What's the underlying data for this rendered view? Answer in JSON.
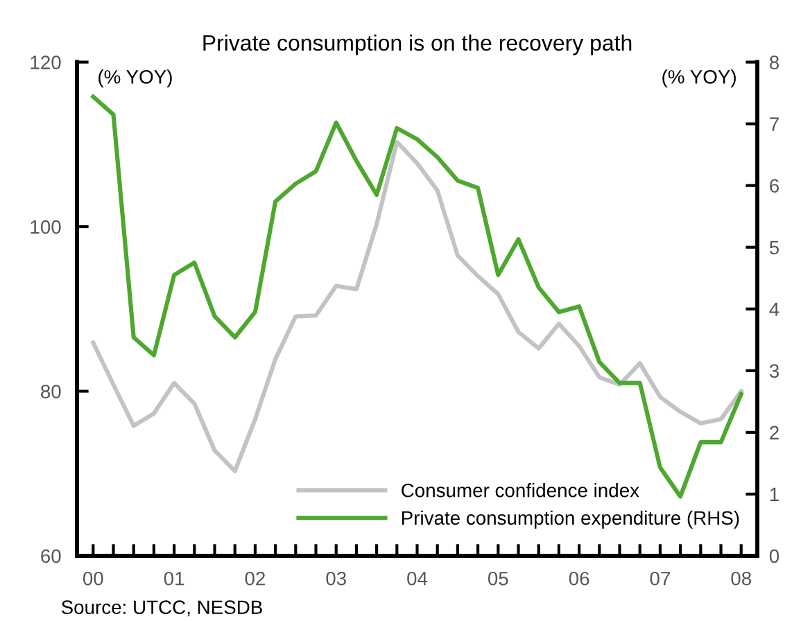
{
  "chart_data": {
    "type": "line",
    "title": "Private consumption is on the recovery path",
    "ylabel": "(% YOY)",
    "y2label": "(% YOY)",
    "x": [
      0,
      0.25,
      0.5,
      0.75,
      1,
      1.25,
      1.5,
      1.75,
      2,
      2.25,
      2.5,
      2.75,
      3,
      3.25,
      3.5,
      3.75,
      4,
      4.25,
      4.5,
      4.75,
      5,
      5.25,
      5.5,
      5.75,
      6,
      6.25,
      6.5,
      6.75,
      7,
      7.25,
      7.5,
      7.75,
      8
    ],
    "series": [
      {
        "name": "Consumer confidence index",
        "color": "#c3c3c3",
        "values": [
          85.9,
          80.8,
          75.8,
          77.3,
          81.0,
          78.5,
          72.8,
          70.3,
          76.6,
          83.9,
          89.1,
          89.2,
          92.8,
          92.4,
          100.3,
          110.3,
          107.7,
          104.4,
          96.5,
          94.0,
          91.8,
          87.2,
          85.2,
          88.2,
          85.5,
          81.7,
          80.8,
          83.4,
          79.3,
          77.5,
          76.1,
          76.6,
          80.0
        ]
      },
      {
        "name": "Private consumption expenditure (RHS)",
        "color": "#4ea72e",
        "axis": "y2",
        "values": [
          7.44,
          7.15,
          3.54,
          3.25,
          4.55,
          4.75,
          3.88,
          3.54,
          3.95,
          5.74,
          6.03,
          6.23,
          7.02,
          6.4,
          5.85,
          6.93,
          6.75,
          6.46,
          6.08,
          5.96,
          4.55,
          5.13,
          4.35,
          3.95,
          4.04,
          3.14,
          2.8,
          2.8,
          1.43,
          0.96,
          1.84,
          1.84,
          2.62
        ]
      }
    ],
    "xlim": [
      -0.2,
      8.2
    ],
    "xticks": [
      {
        "value": 0,
        "label": "00"
      },
      {
        "value": 0.25,
        "label": null
      },
      {
        "value": 0.5,
        "label": null
      },
      {
        "value": 0.75,
        "label": null
      },
      {
        "value": 1,
        "label": "01"
      },
      {
        "value": 1.25,
        "label": null
      },
      {
        "value": 1.5,
        "label": null
      },
      {
        "value": 1.75,
        "label": null
      },
      {
        "value": 2,
        "label": "02"
      },
      {
        "value": 2.25,
        "label": null
      },
      {
        "value": 2.5,
        "label": null
      },
      {
        "value": 2.75,
        "label": null
      },
      {
        "value": 3,
        "label": "03"
      },
      {
        "value": 3.25,
        "label": null
      },
      {
        "value": 3.5,
        "label": null
      },
      {
        "value": 3.75,
        "label": null
      },
      {
        "value": 4,
        "label": "04"
      },
      {
        "value": 4.25,
        "label": null
      },
      {
        "value": 4.5,
        "label": null
      },
      {
        "value": 4.75,
        "label": null
      },
      {
        "value": 5,
        "label": "05"
      },
      {
        "value": 5.25,
        "label": null
      },
      {
        "value": 5.5,
        "label": null
      },
      {
        "value": 5.75,
        "label": null
      },
      {
        "value": 6,
        "label": "06"
      },
      {
        "value": 6.25,
        "label": null
      },
      {
        "value": 6.5,
        "label": null
      },
      {
        "value": 6.75,
        "label": null
      },
      {
        "value": 7,
        "label": "07"
      },
      {
        "value": 7.25,
        "label": null
      },
      {
        "value": 7.5,
        "label": null
      },
      {
        "value": 7.75,
        "label": null
      },
      {
        "value": 8,
        "label": "08"
      }
    ],
    "ylim": [
      60,
      120
    ],
    "yticks": [
      60,
      80,
      100,
      120
    ],
    "y2lim": [
      0,
      8
    ],
    "y2ticks": [
      0,
      1,
      2,
      3,
      4,
      5,
      6,
      7,
      8
    ],
    "grid": false,
    "legend": "bottom right",
    "marker": "none",
    "line_style": "solid",
    "annotations": [
      "Source: UTCC, NESDB"
    ]
  }
}
